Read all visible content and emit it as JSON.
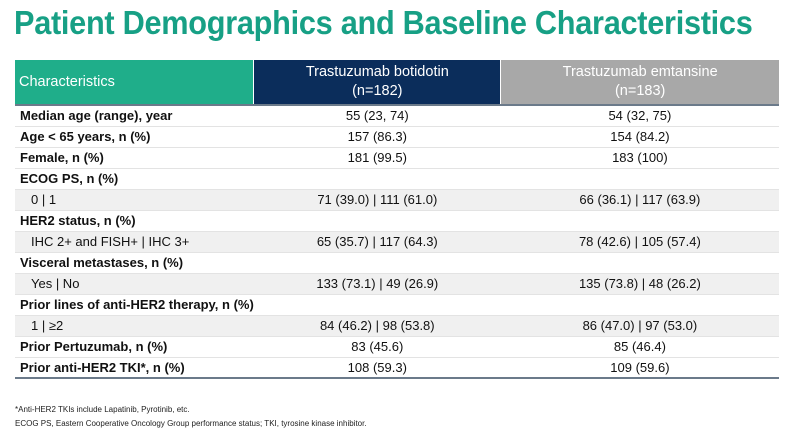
{
  "title": "Patient Demographics and Baseline Characteristics",
  "header": {
    "col0": "Characteristics",
    "col1_line1": "Trastuzumab botidotin",
    "col1_line2": "(n=182)",
    "col2_line1": "Trastuzumab emtansine",
    "col2_line2": "(n=183)"
  },
  "rows": [
    {
      "label": "Median age (range), year",
      "a": "55 (23, 74)",
      "b": "54 (32, 75)",
      "sub": false
    },
    {
      "label": "Age < 65 years, n (%)",
      "a": "157 (86.3)",
      "b": "154 (84.2)",
      "sub": false
    },
    {
      "label": "Female, n (%)",
      "a": "181 (99.5)",
      "b": "183 (100)",
      "sub": false
    },
    {
      "label": "ECOG PS, n (%)",
      "a": "",
      "b": "",
      "sub": false
    },
    {
      "label": "0 | 1",
      "a": "71 (39.0) | 111 (61.0)",
      "b": "66 (36.1) | 117 (63.9)",
      "sub": true
    },
    {
      "label": "HER2 status, n (%)",
      "a": "",
      "b": "",
      "sub": false
    },
    {
      "label": "IHC 2+ and FISH+ | IHC 3+",
      "a": "65 (35.7) | 117 (64.3)",
      "b": "78 (42.6) | 105 (57.4)",
      "sub": true
    },
    {
      "label": "Visceral metastases, n (%)",
      "a": "",
      "b": "",
      "sub": false
    },
    {
      "label": "Yes | No",
      "a": "133 (73.1) | 49 (26.9)",
      "b": "135 (73.8) | 48 (26.2)",
      "sub": true
    },
    {
      "label": "Prior lines of anti-HER2 therapy, n (%)",
      "a": "",
      "b": "",
      "sub": false
    },
    {
      "label": "1 | ≥2",
      "a": "84 (46.2) | 98 (53.8)",
      "b": "86 (47.0) | 97 (53.0)",
      "sub": true
    },
    {
      "label": "Prior Pertuzumab, n (%)",
      "a": "83 (45.6)",
      "b": "85 (46.4)",
      "sub": false
    },
    {
      "label": "Prior anti-HER2 TKI*, n (%)",
      "a": "108 (59.3)",
      "b": "109 (59.6)",
      "sub": false
    }
  ],
  "footnotes": [
    "*Anti-HER2 TKIs include Lapatinib, Pyrotinib, etc.",
    "ECOG PS, Eastern Cooperative Oncology Group performance status; TKI, tyrosine kinase inhibitor."
  ]
}
